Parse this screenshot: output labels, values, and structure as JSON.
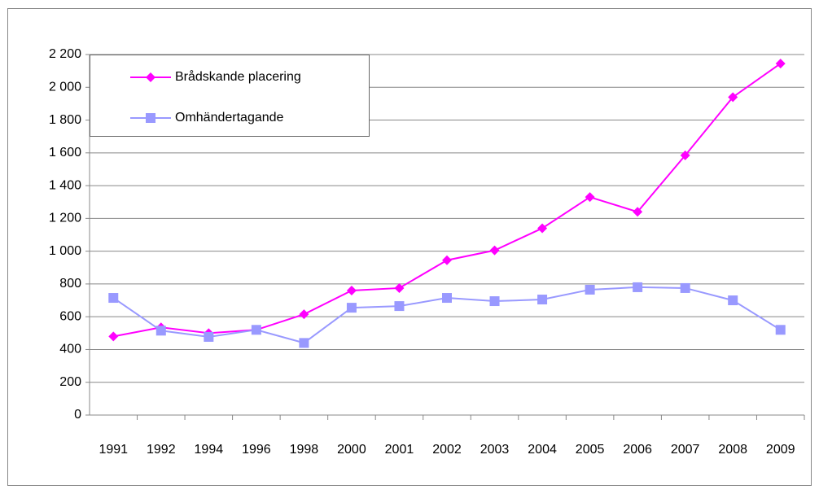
{
  "chart_data": {
    "type": "line",
    "categories": [
      "1991",
      "1992",
      "1994",
      "1996",
      "1998",
      "2000",
      "2001",
      "2002",
      "2003",
      "2004",
      "2005",
      "2006",
      "2007",
      "2008",
      "2009"
    ],
    "series": [
      {
        "name": "Brådskande placering",
        "color": "#ff00ff",
        "marker": "diamond",
        "values": [
          480,
          535,
          500,
          520,
          615,
          760,
          775,
          945,
          1005,
          1140,
          1330,
          1240,
          1585,
          1940,
          2145
        ]
      },
      {
        "name": "Omhändertagande",
        "color": "#9999ff",
        "marker": "square",
        "values": [
          715,
          515,
          477,
          520,
          440,
          655,
          665,
          715,
          695,
          705,
          765,
          780,
          775,
          700,
          520
        ]
      }
    ],
    "ylim": [
      0,
      2200
    ],
    "yticks": [
      0,
      200,
      400,
      600,
      800,
      {
        "value": 1000,
        "label": "1 000"
      },
      {
        "value": 1200,
        "label": "1 200"
      },
      {
        "value": 1400,
        "label": "1 400"
      },
      {
        "value": 1600,
        "label": "1 600"
      },
      {
        "value": 1800,
        "label": "1 800"
      },
      {
        "value": 2000,
        "label": "2 000"
      },
      {
        "value": 2200,
        "label": "2 200"
      }
    ],
    "grid": true,
    "legend": "top-left"
  }
}
